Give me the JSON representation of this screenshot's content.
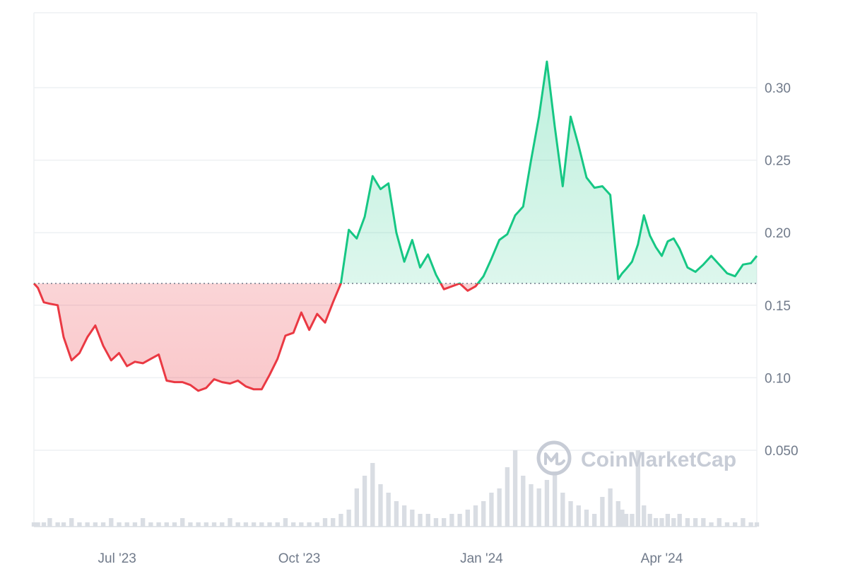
{
  "chart_data": {
    "type": "area",
    "series": [
      {
        "name": "",
        "x": [
          "2023-05-20",
          "2023-05-22",
          "2023-05-25",
          "2023-05-28",
          "2023-06-01",
          "2023-06-04",
          "2023-06-08",
          "2023-06-12",
          "2023-06-16",
          "2023-06-20",
          "2023-06-24",
          "2023-06-28",
          "2023-07-02",
          "2023-07-06",
          "2023-07-10",
          "2023-07-14",
          "2023-07-18",
          "2023-07-22",
          "2023-07-26",
          "2023-07-30",
          "2023-08-03",
          "2023-08-07",
          "2023-08-11",
          "2023-08-15",
          "2023-08-19",
          "2023-08-23",
          "2023-08-27",
          "2023-08-31",
          "2023-09-04",
          "2023-09-08",
          "2023-09-12",
          "2023-09-16",
          "2023-09-20",
          "2023-09-24",
          "2023-09-28",
          "2023-10-02",
          "2023-10-06",
          "2023-10-10",
          "2023-10-14",
          "2023-10-18",
          "2023-10-22",
          "2023-10-26",
          "2023-10-30",
          "2023-11-03",
          "2023-11-07",
          "2023-11-11",
          "2023-11-15",
          "2023-11-19",
          "2023-11-23",
          "2023-11-27",
          "2023-12-01",
          "2023-12-05",
          "2023-12-09",
          "2023-12-13",
          "2023-12-17",
          "2023-12-21",
          "2023-12-25",
          "2023-12-29",
          "2024-01-02",
          "2024-01-06",
          "2024-01-10",
          "2024-01-14",
          "2024-01-18",
          "2024-01-22",
          "2024-01-26",
          "2024-01-30",
          "2024-02-03",
          "2024-02-07",
          "2024-02-11",
          "2024-02-15",
          "2024-02-19",
          "2024-02-23",
          "2024-02-27",
          "2024-03-02",
          "2024-03-06",
          "2024-03-10",
          "2024-03-12",
          "2024-03-14",
          "2024-03-17",
          "2024-03-20",
          "2024-03-23",
          "2024-03-26",
          "2024-03-29",
          "2024-04-01",
          "2024-04-04",
          "2024-04-07",
          "2024-04-10",
          "2024-04-14",
          "2024-04-18",
          "2024-04-22",
          "2024-04-26",
          "2024-04-30",
          "2024-05-04",
          "2024-05-08",
          "2024-05-12",
          "2024-05-16",
          "2024-05-19"
        ],
        "values": [
          0.165,
          0.162,
          0.152,
          0.151,
          0.15,
          0.128,
          0.112,
          0.117,
          0.128,
          0.136,
          0.122,
          0.112,
          0.117,
          0.108,
          0.111,
          0.11,
          0.113,
          0.116,
          0.098,
          0.097,
          0.097,
          0.095,
          0.091,
          0.093,
          0.099,
          0.097,
          0.096,
          0.098,
          0.094,
          0.092,
          0.092,
          0.102,
          0.113,
          0.129,
          0.131,
          0.145,
          0.133,
          0.144,
          0.138,
          0.152,
          0.165,
          0.202,
          0.196,
          0.211,
          0.239,
          0.23,
          0.234,
          0.2,
          0.18,
          0.195,
          0.176,
          0.185,
          0.171,
          0.161,
          0.163,
          0.165,
          0.16,
          0.163,
          0.17,
          0.182,
          0.195,
          0.199,
          0.212,
          0.218,
          0.25,
          0.28,
          0.318,
          0.273,
          0.232,
          0.28,
          0.26,
          0.238,
          0.231,
          0.232,
          0.226,
          0.168,
          0.172,
          0.175,
          0.18,
          0.192,
          0.212,
          0.198,
          0.19,
          0.184,
          0.194,
          0.196,
          0.189,
          0.176,
          0.173,
          0.178,
          0.184,
          0.178,
          0.172,
          0.17,
          0.178,
          0.179,
          0.184
        ]
      }
    ],
    "baseline": 0.165,
    "volume": [
      1,
      1,
      1,
      2,
      1,
      1,
      2,
      1,
      1,
      1,
      1,
      2,
      1,
      1,
      1,
      2,
      1,
      1,
      1,
      1,
      2,
      1,
      1,
      1,
      1,
      1,
      2,
      1,
      1,
      1,
      1,
      1,
      1,
      2,
      1,
      1,
      1,
      1,
      2,
      2,
      3,
      4,
      9,
      12,
      15,
      10,
      8,
      6,
      5,
      4,
      3,
      3,
      2,
      2,
      3,
      3,
      4,
      5,
      6,
      8,
      9,
      14,
      18,
      12,
      10,
      9,
      11,
      13,
      8,
      6,
      5,
      4,
      3,
      7,
      9,
      6,
      4,
      3,
      3,
      18,
      5,
      3,
      2,
      2,
      3,
      2,
      3,
      2,
      2,
      2,
      1,
      2,
      1,
      1,
      2,
      1,
      1
    ],
    "volume_max": 10,
    "xlim": [
      "2023-05-20",
      "2024-05-19"
    ],
    "ylim": [
      0.0,
      0.35
    ],
    "xticks": [
      {
        "label": "Jul '23",
        "x": "2023-07-01"
      },
      {
        "label": "Oct '23",
        "x": "2023-10-01"
      },
      {
        "label": "Jan '24",
        "x": "2024-01-01"
      },
      {
        "label": "Apr '24",
        "x": "2024-04-01"
      }
    ],
    "yticks": [
      {
        "label": "0.30",
        "value": 0.3
      },
      {
        "label": "0.25",
        "value": 0.25
      },
      {
        "label": "0.20",
        "value": 0.2
      },
      {
        "label": "0.15",
        "value": 0.15
      },
      {
        "label": "0.10",
        "value": 0.1
      },
      {
        "label": "0.050",
        "value": 0.05
      }
    ],
    "grid": true,
    "colors": {
      "up": "#16c784",
      "down": "#ea3943",
      "up_fill": "#16c784",
      "down_fill": "#ea3943",
      "grid": "#eef0f3",
      "volume": "#d9dde3",
      "watermark": "#c7ccd6"
    },
    "watermark": "CoinMarketCap"
  }
}
